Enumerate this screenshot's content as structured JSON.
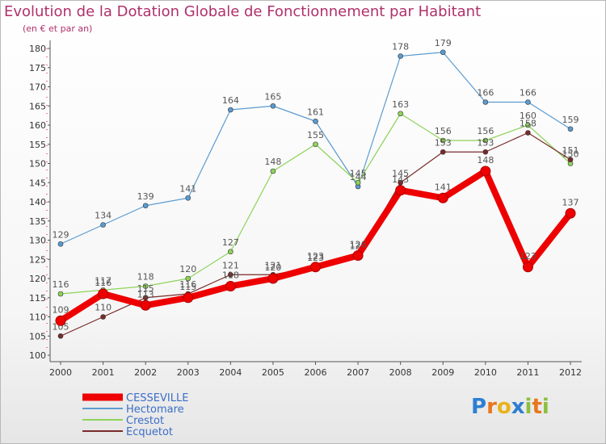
{
  "title": "Evolution de la Dotation Globale de Fonctionnement par Habitant",
  "subtitle": "(en € et par an)",
  "logo": {
    "text": "Proxiti"
  },
  "chart_data": {
    "type": "line",
    "title": "Evolution de la Dotation Globale de Fonctionnement par Habitant",
    "subtitle": "(en € et par an)",
    "x": [
      "2000",
      "2001",
      "2002",
      "2003",
      "2004",
      "2005",
      "2006",
      "2007",
      "2008",
      "2009",
      "2010",
      "2011",
      "2012"
    ],
    "ylim": [
      100,
      180
    ],
    "yticks": [
      100,
      105,
      110,
      115,
      120,
      125,
      130,
      135,
      140,
      145,
      150,
      155,
      160,
      165,
      170,
      175,
      180
    ],
    "grid": false,
    "legend": "bottom-left",
    "series": [
      {
        "name": "CESSEVILLE",
        "color": "#ee0000",
        "values": [
          109,
          116,
          113,
          115,
          118,
          120,
          123,
          126,
          143,
          141,
          148,
          123,
          137
        ]
      },
      {
        "name": "Hectomare",
        "color": "#5b9bd0",
        "values": [
          129,
          134,
          139,
          141,
          164,
          165,
          161,
          144,
          178,
          179,
          166,
          166,
          159
        ]
      },
      {
        "name": "Crestot",
        "color": "#8ed35a",
        "values": [
          116,
          117,
          118,
          120,
          127,
          148,
          155,
          145,
          163,
          156,
          156,
          160,
          150
        ]
      },
      {
        "name": "Ecquetot",
        "color": "#7a2a2a",
        "values": [
          105,
          110,
          115,
          116,
          121,
          121,
          123,
          126,
          145,
          153,
          153,
          158,
          151
        ]
      }
    ]
  }
}
